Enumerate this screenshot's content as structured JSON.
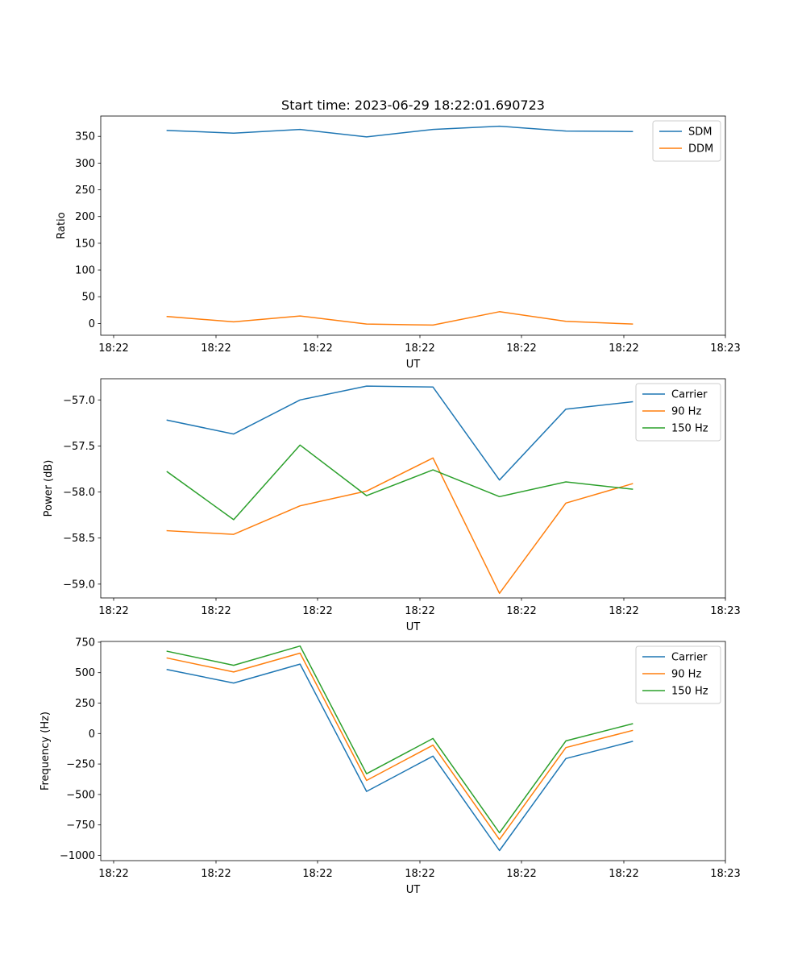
{
  "title": "Start time: 2023-06-29 18:22:01.690723",
  "colors": {
    "series1": "#1f77b4",
    "series2": "#ff7f0e",
    "series3": "#2ca02c",
    "axes": "#000000",
    "legend_border": "#cccccc"
  },
  "chart_data": [
    {
      "type": "line",
      "title": "Start time: 2023-06-29 18:22:01.690723",
      "xlabel": "UT",
      "ylabel": "Ratio",
      "x_tick_labels": [
        "18:22",
        "18:22",
        "18:22",
        "18:22",
        "18:22",
        "18:22",
        "18:23"
      ],
      "x_points": [
        1,
        2,
        3,
        4,
        5,
        6,
        7,
        8
      ],
      "xlim": [
        0,
        9.4
      ],
      "ylim": [
        -22,
        388
      ],
      "yticks": [
        0,
        50,
        100,
        150,
        200,
        250,
        300,
        350
      ],
      "grid": false,
      "legend_position": "top-right",
      "series": [
        {
          "name": "SDM",
          "values": [
            361,
            356,
            363,
            349,
            363,
            369,
            360,
            359
          ]
        },
        {
          "name": "DDM",
          "values": [
            13,
            3,
            14,
            -1,
            -3,
            22,
            4,
            -1
          ]
        }
      ]
    },
    {
      "type": "line",
      "xlabel": "UT",
      "ylabel": "Power (dB)",
      "x_tick_labels": [
        "18:22",
        "18:22",
        "18:22",
        "18:22",
        "18:22",
        "18:22",
        "18:23"
      ],
      "x_points": [
        1,
        2,
        3,
        4,
        5,
        6,
        7,
        8
      ],
      "xlim": [
        0,
        9.4
      ],
      "ylim": [
        -59.15,
        -56.77
      ],
      "yticks": [
        -59.0,
        -58.5,
        -58.0,
        -57.5,
        -57.0
      ],
      "grid": false,
      "legend_position": "top-right",
      "series": [
        {
          "name": "Carrier",
          "values": [
            -57.22,
            -57.37,
            -57.0,
            -56.85,
            -56.86,
            -57.87,
            -57.1,
            -57.02
          ]
        },
        {
          "name": "90 Hz",
          "values": [
            -58.42,
            -58.46,
            -58.15,
            -57.99,
            -57.63,
            -59.1,
            -58.12,
            -57.91
          ]
        },
        {
          "name": "150 Hz",
          "values": [
            -57.78,
            -58.3,
            -57.49,
            -58.04,
            -57.76,
            -58.05,
            -57.89,
            -57.97
          ]
        }
      ]
    },
    {
      "type": "line",
      "xlabel": "UT",
      "ylabel": "Frequency (Hz)",
      "x_tick_labels": [
        "18:22",
        "18:22",
        "18:22",
        "18:22",
        "18:22",
        "18:22",
        "18:23"
      ],
      "x_points": [
        1,
        2,
        3,
        4,
        5,
        6,
        7,
        8
      ],
      "xlim": [
        0,
        9.4
      ],
      "ylim": [
        -1043,
        756
      ],
      "yticks": [
        -1000,
        -750,
        -500,
        -250,
        0,
        250,
        500,
        750
      ],
      "grid": false,
      "legend_position": "top-right",
      "series": [
        {
          "name": "Carrier",
          "values": [
            525,
            415,
            570,
            -475,
            -185,
            -960,
            -205,
            -65
          ]
        },
        {
          "name": "90 Hz",
          "values": [
            620,
            505,
            660,
            -385,
            -95,
            -870,
            -115,
            25
          ]
        },
        {
          "name": "150 Hz",
          "values": [
            675,
            560,
            718,
            -330,
            -40,
            -815,
            -60,
            80
          ]
        }
      ]
    }
  ]
}
